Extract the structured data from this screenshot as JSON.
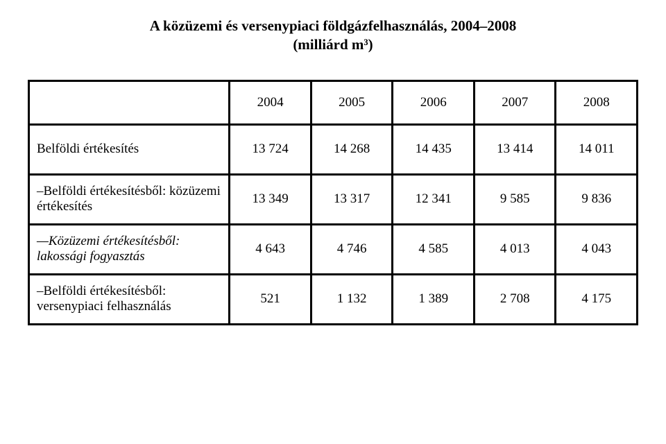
{
  "title_line1": "A közüzemi és versenypiaci földgázfelhasználás, 2004–2008",
  "title_line2": "(milliárd m³)",
  "table": {
    "columns": [
      "",
      "2004",
      "2005",
      "2006",
      "2007",
      "2008"
    ],
    "rows": [
      {
        "label": "Belföldi értékesítés",
        "italic": false,
        "values": [
          "13 724",
          "14 268",
          "14 435",
          "13 414",
          "14 011"
        ]
      },
      {
        "label": "–Belföldi értékesítésből: közüzemi értékesítés",
        "italic": false,
        "values": [
          "13 349",
          "13 317",
          "12 341",
          "9 585",
          "9 836"
        ]
      },
      {
        "label": "—Közüzemi értékesítésből: lakossági fogyasztás",
        "italic": true,
        "values": [
          "4 643",
          "4 746",
          "4 585",
          "4 013",
          "4 043"
        ]
      },
      {
        "label": "–Belföldi értékesítésből: versenypiaci felhasználás",
        "italic": false,
        "values": [
          "521",
          "1 132",
          "1 389",
          "2 708",
          "4 175"
        ]
      }
    ],
    "border_color": "#000000",
    "background_color": "#ffffff",
    "font_family": "Times New Roman",
    "header_fontsize": 19,
    "cell_fontsize": 19,
    "title_fontsize": 21
  }
}
